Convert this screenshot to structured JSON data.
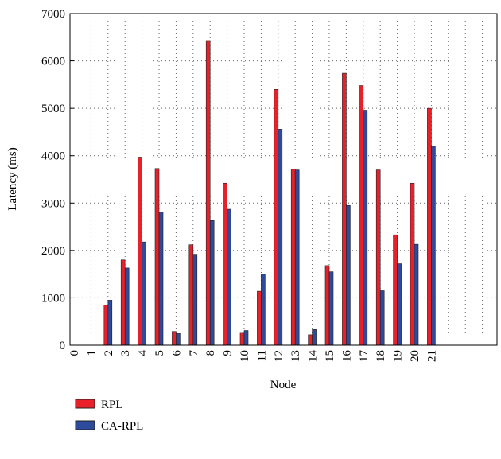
{
  "chart_data": {
    "type": "bar",
    "x_label": "Node",
    "y_label": "Latency (ms)",
    "categories": [
      "0",
      "1",
      "2",
      "3",
      "4",
      "5",
      "6",
      "7",
      "8",
      "9",
      "10",
      "11",
      "12",
      "13",
      "14",
      "15",
      "16",
      "17",
      "18",
      "19",
      "20",
      "21"
    ],
    "series": [
      {
        "name": "RPL",
        "color": "#e8202a",
        "values": [
          null,
          null,
          850,
          1800,
          3970,
          3730,
          290,
          2120,
          6430,
          3420,
          270,
          1140,
          5400,
          3720,
          220,
          1680,
          5740,
          5480,
          3700,
          2330,
          3420,
          5000
        ]
      },
      {
        "name": "CA-RPL",
        "color": "#2e4b9b",
        "values": [
          null,
          null,
          950,
          1630,
          2180,
          2810,
          250,
          1920,
          2630,
          2870,
          310,
          1500,
          4560,
          3700,
          330,
          1550,
          2950,
          4960,
          1150,
          1720,
          2130,
          4200
        ]
      }
    ],
    "ylim": [
      0,
      7000
    ],
    "yticks": [
      0,
      1000,
      2000,
      3000,
      4000,
      5000,
      6000,
      7000
    ],
    "grid": true,
    "legend": "bottom"
  }
}
